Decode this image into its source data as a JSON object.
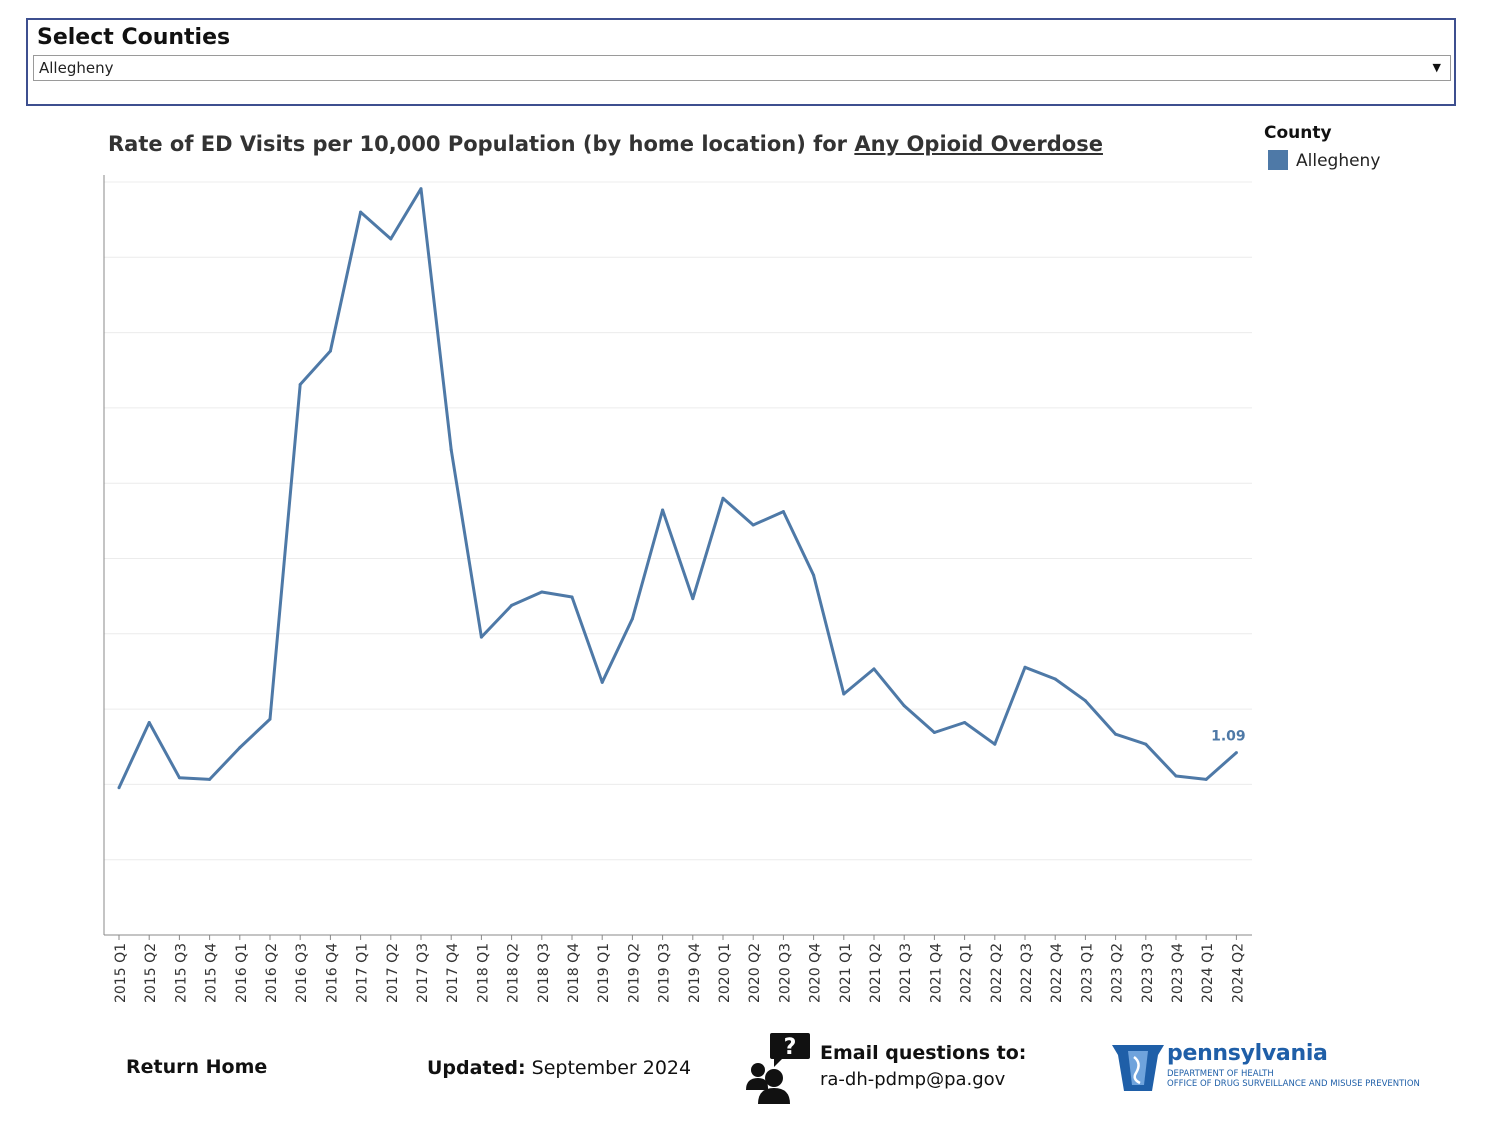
{
  "county_filter": {
    "title": "Select Counties",
    "selected": "Allegheny"
  },
  "chart": {
    "title_prefix": "Rate of ED Visits per 10,000 Population (by home location) for",
    "title_link": "Any Opioid Overdose",
    "legend_title": "County",
    "legend_item": "Allegheny",
    "series_color": "#4e79a7",
    "end_label": "1.09"
  },
  "chart_data": {
    "type": "line",
    "x": [
      "2015 Q1",
      "2015 Q2",
      "2015 Q3",
      "2015 Q4",
      "2016 Q1",
      "2016 Q2",
      "2016 Q3",
      "2016 Q4",
      "2017 Q1",
      "2017 Q2",
      "2017 Q3",
      "2017 Q4",
      "2018 Q1",
      "2018 Q2",
      "2018 Q3",
      "2018 Q4",
      "2019 Q1",
      "2019 Q2",
      "2019 Q3",
      "2019 Q4",
      "2020 Q1",
      "2020 Q2",
      "2020 Q3",
      "2020 Q4",
      "2021 Q1",
      "2021 Q2",
      "2021 Q3",
      "2021 Q4",
      "2022 Q1",
      "2022 Q2",
      "2022 Q3",
      "2022 Q4",
      "2023 Q1",
      "2023 Q2",
      "2023 Q3",
      "2023 Q4",
      "2024 Q1",
      "2024 Q2"
    ],
    "series": [
      {
        "name": "Allegheny",
        "values": [
          0.88,
          1.27,
          0.94,
          0.93,
          1.12,
          1.29,
          3.29,
          3.49,
          4.32,
          4.16,
          4.46,
          2.9,
          1.78,
          1.97,
          2.05,
          2.02,
          1.51,
          1.89,
          2.54,
          2.01,
          2.61,
          2.45,
          2.53,
          2.15,
          1.44,
          1.59,
          1.37,
          1.21,
          1.27,
          1.14,
          1.6,
          1.53,
          1.4,
          1.2,
          1.14,
          0.95,
          0.93,
          1.09
        ]
      }
    ],
    "ylim": [
      0,
      4.5
    ],
    "y_gridlines": [
      0.45,
      0.9,
      1.35,
      1.8,
      2.25,
      2.7,
      3.15,
      3.6,
      4.05,
      4.5
    ],
    "y_tick_labels": false,
    "xlabel": "",
    "ylabel": "",
    "grid": true,
    "legend": "top-right"
  },
  "footer": {
    "return_home": "Return Home",
    "updated_label": "Updated:",
    "updated_value": "September 2024",
    "email_label": "Email questions to:",
    "email_address": "ra-dh-pdmp@pa.gov",
    "logo_name": "pennsylvania",
    "logo_dept_line1": "Department of Health",
    "logo_dept_line2": "Office of Drug Surveillance and Misuse Prevention",
    "icons": [
      "question-chat-people-icon",
      "pennsylvania-keystone-logo"
    ]
  }
}
